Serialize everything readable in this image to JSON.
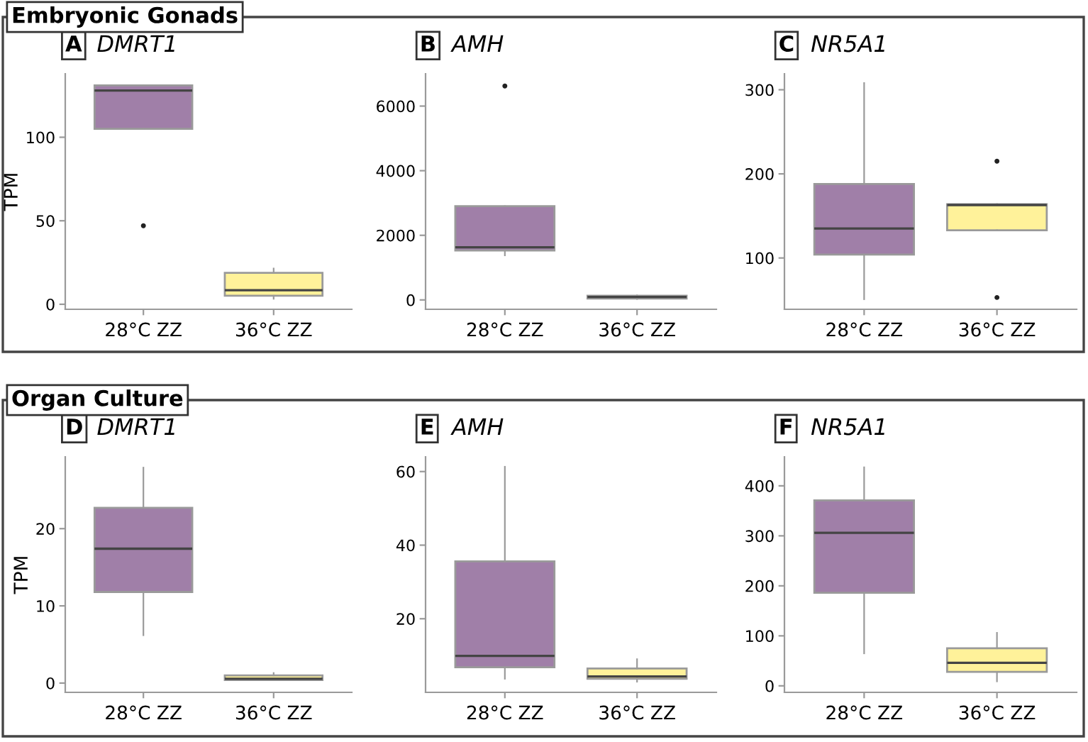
{
  "chart_data": [
    {
      "type": "box",
      "title": "DMRT1",
      "ylabel": "TPM",
      "annotations": [
        "Embryonic Gonads",
        "A"
      ],
      "categories": [
        "28°C ZZ",
        "36°C ZZ"
      ],
      "colors": [
        "#a07fa8",
        "#fff29a"
      ],
      "ylim": [
        -3,
        138
      ],
      "yticks": [
        0,
        50,
        100
      ],
      "grid": false,
      "boxes": [
        {
          "low": 105,
          "q1": 105,
          "median": 128,
          "q3": 131,
          "high": 131,
          "outliers": [
            47
          ]
        },
        {
          "low": 3.3,
          "q1": 5.1,
          "median": 8.4,
          "q3": 18.8,
          "high": 21.4
        }
      ]
    },
    {
      "type": "box",
      "title": "AMH",
      "annotations": [
        "B"
      ],
      "categories": [
        "28°C ZZ",
        "36°C ZZ"
      ],
      "colors": [
        "#a07fa8",
        "#fff29a"
      ],
      "ylim": [
        -290,
        7000
      ],
      "yticks": [
        0,
        2000,
        4000,
        6000
      ],
      "grid": false,
      "boxes": [
        {
          "low": 1380,
          "q1": 1530,
          "median": 1630,
          "q3": 2900,
          "high": 2900,
          "outliers": [
            6620
          ]
        },
        {
          "low": 30,
          "q1": 40,
          "median": 90,
          "q3": 130,
          "high": 140
        }
      ]
    },
    {
      "type": "box",
      "title": "NR5A1",
      "annotations": [
        "C"
      ],
      "categories": [
        "28°C ZZ",
        "36°C ZZ"
      ],
      "colors": [
        "#a07fa8",
        "#fff29a"
      ],
      "ylim": [
        39,
        319
      ],
      "yticks": [
        100,
        200,
        300
      ],
      "grid": false,
      "boxes": [
        {
          "low": 51,
          "q1": 104,
          "median": 135,
          "q3": 188,
          "high": 308
        },
        {
          "low": 133,
          "q1": 133,
          "median": 163,
          "q3": 164,
          "high": 164,
          "outliers": [
            215,
            53
          ]
        }
      ]
    },
    {
      "type": "box",
      "title": "DMRT1",
      "ylabel": "TPM",
      "annotations": [
        "Organ Culture",
        "D"
      ],
      "categories": [
        "28°C ZZ",
        "36°C ZZ"
      ],
      "colors": [
        "#a07fa8",
        "#fff29a"
      ],
      "ylim": [
        -1.2,
        29.3
      ],
      "yticks": [
        0,
        10,
        20
      ],
      "grid": false,
      "boxes": [
        {
          "low": 6.2,
          "q1": 11.8,
          "median": 17.4,
          "q3": 22.7,
          "high": 27.9
        },
        {
          "low": 0.4,
          "q1": 0.4,
          "median": 0.55,
          "q3": 1.0,
          "high": 1.3
        }
      ]
    },
    {
      "type": "box",
      "title": "AMH",
      "annotations": [
        "E"
      ],
      "categories": [
        "28°C ZZ",
        "36°C ZZ"
      ],
      "colors": [
        "#a07fa8",
        "#fff29a"
      ],
      "ylim": [
        0,
        64
      ],
      "yticks": [
        20,
        40,
        60
      ],
      "grid": false,
      "boxes": [
        {
          "low": 3.7,
          "q1": 6.8,
          "median": 9.9,
          "q3": 35.6,
          "high": 61.3
        },
        {
          "low": 2.9,
          "q1": 3.7,
          "median": 4.3,
          "q3": 6.5,
          "high": 9.0
        }
      ]
    },
    {
      "type": "box",
      "title": "NR5A1",
      "annotations": [
        "F"
      ],
      "categories": [
        "28°C ZZ",
        "36°C ZZ"
      ],
      "colors": [
        "#a07fa8",
        "#fff29a"
      ],
      "ylim": [
        -13,
        458
      ],
      "yticks": [
        0,
        100,
        200,
        300,
        400
      ],
      "grid": false,
      "boxes": [
        {
          "low": 65,
          "q1": 186,
          "median": 306,
          "q3": 371,
          "high": 437
        },
        {
          "low": 9,
          "q1": 28,
          "median": 46,
          "q3": 75,
          "high": 106
        }
      ]
    }
  ]
}
